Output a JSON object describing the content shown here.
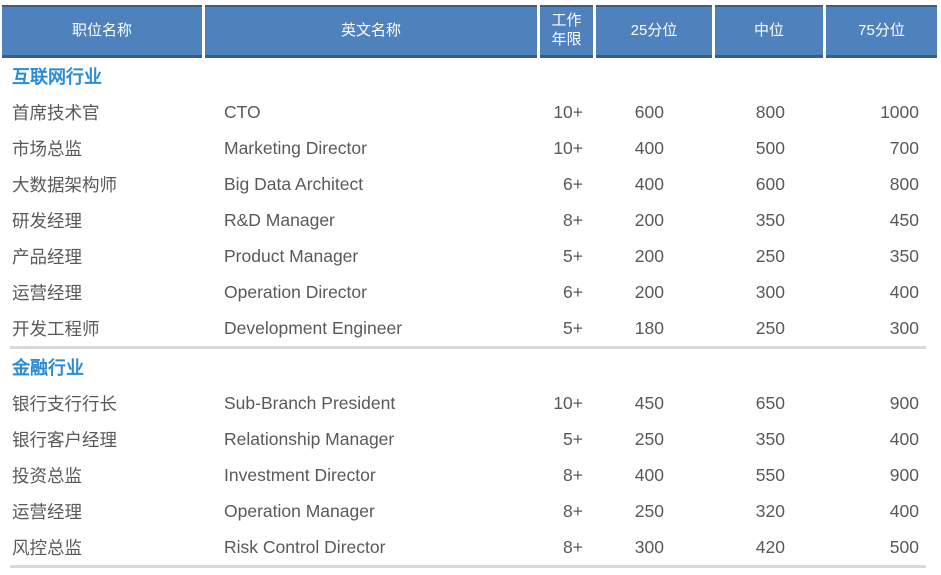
{
  "colors": {
    "header_bg": "#4F81BD",
    "header_border": "#385D8A",
    "section_title": "#2A8BD6",
    "body_text": "#595959",
    "divider": "#D9D9D9"
  },
  "table": {
    "columns": [
      {
        "label": "职位名称"
      },
      {
        "label": "英文名称"
      },
      {
        "label": "工作年限"
      },
      {
        "label": "25分位"
      },
      {
        "label": "中位"
      },
      {
        "label": "75分位"
      }
    ],
    "sections": [
      {
        "title": "互联网行业",
        "rows": [
          [
            "首席技术官",
            "CTO",
            "10+",
            "600",
            "800",
            "1000"
          ],
          [
            "市场总监",
            "Marketing Director",
            "10+",
            "400",
            "500",
            "700"
          ],
          [
            "大数据架构师",
            "Big Data Architect",
            "6+",
            "400",
            "600",
            "800"
          ],
          [
            "研发经理",
            "R&D Manager",
            "8+",
            "200",
            "350",
            "450"
          ],
          [
            "产品经理",
            "Product Manager",
            "5+",
            "200",
            "250",
            "350"
          ],
          [
            "运营经理",
            "Operation Director",
            "6+",
            "200",
            "300",
            "400"
          ],
          [
            "开发工程师",
            "Development Engineer",
            "5+",
            "180",
            "250",
            "300"
          ]
        ]
      },
      {
        "title": "金融行业",
        "rows": [
          [
            "银行支行行长",
            "Sub-Branch President",
            "10+",
            "450",
            "650",
            "900"
          ],
          [
            "银行客户经理",
            "Relationship Manager",
            "5+",
            "250",
            "350",
            "400"
          ],
          [
            "投资总监",
            "Investment Director",
            "8+",
            "400",
            "550",
            "900"
          ],
          [
            "运营经理",
            "Operation Manager",
            "8+",
            "250",
            "320",
            "400"
          ],
          [
            "风控总监",
            "Risk Control Director",
            "8+",
            "300",
            "420",
            "500"
          ]
        ]
      }
    ]
  }
}
